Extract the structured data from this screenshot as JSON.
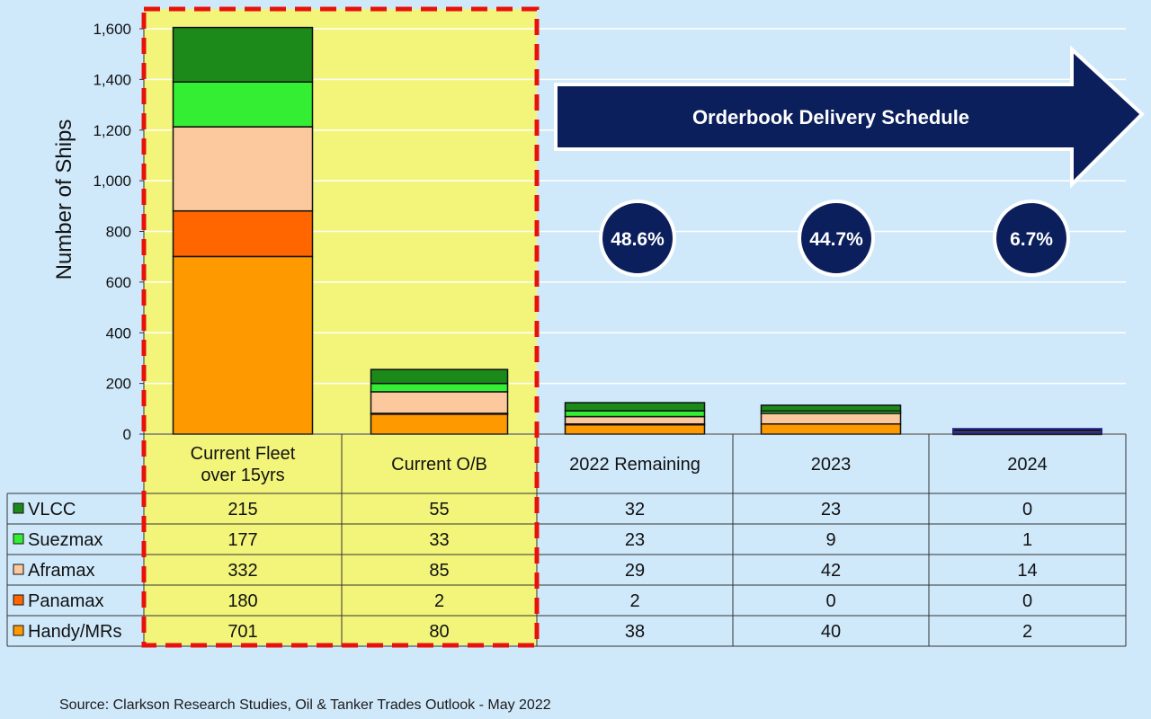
{
  "chart_data": {
    "type": "bar",
    "stacked": true,
    "ylabel": "Number of Ships",
    "ylim": [
      0,
      1600
    ],
    "yticks": [
      "0",
      "200",
      "400",
      "600",
      "800",
      "1,000",
      "1,200",
      "1,400",
      "1,600"
    ],
    "categories": [
      "Current Fleet over 15yrs",
      "Current O/B",
      "2022 Remaining",
      "2023",
      "2024"
    ],
    "category_lines": [
      [
        "Current Fleet",
        "over 15yrs"
      ],
      [
        "Current O/B"
      ],
      [
        "2022 Remaining"
      ],
      [
        "2023"
      ],
      [
        "2024"
      ]
    ],
    "series": [
      {
        "name": "Handy/MRs",
        "color": "#ff9900",
        "values": [
          701,
          80,
          38,
          40,
          2
        ]
      },
      {
        "name": "Panamax",
        "color": "#ff6600",
        "values": [
          180,
          2,
          2,
          0,
          0
        ]
      },
      {
        "name": "Aframax",
        "color": "#fcc99e",
        "values": [
          332,
          85,
          29,
          42,
          14
        ]
      },
      {
        "name": "Suezmax",
        "color": "#33ee33",
        "values": [
          177,
          33,
          23,
          9,
          1
        ]
      },
      {
        "name": "VLCC",
        "color": "#1b8a1b",
        "values": [
          215,
          55,
          32,
          23,
          0
        ]
      }
    ],
    "table_rows": [
      {
        "name": "VLCC",
        "color": "#1b8a1b",
        "values": [
          "215",
          "55",
          "32",
          "23",
          "0"
        ]
      },
      {
        "name": "Suezmax",
        "color": "#33ee33",
        "values": [
          "177",
          "33",
          "23",
          "9",
          "1"
        ]
      },
      {
        "name": "Aframax",
        "color": "#fcc99e",
        "values": [
          "332",
          "85",
          "29",
          "42",
          "14"
        ]
      },
      {
        "name": "Panamax",
        "color": "#ff6600",
        "values": [
          "180",
          "2",
          "2",
          "0",
          "0"
        ]
      },
      {
        "name": "Handy/MRs",
        "color": "#ff9900",
        "values": [
          "701",
          "80",
          "38",
          "40",
          "2"
        ]
      }
    ],
    "arrow_label": "Orderbook Delivery Schedule",
    "delivery_shares": [
      "48.6%",
      "44.7%",
      "6.7%"
    ],
    "grid": true,
    "highlight_color": "#f3f57a"
  },
  "colors": {
    "background": "#cfe9fb",
    "navy": "#0b1f5c",
    "highlight_border": "#e8120c"
  },
  "source": "Source: Clarkson Research Studies, Oil & Tanker Trades Outlook  - May  2022"
}
